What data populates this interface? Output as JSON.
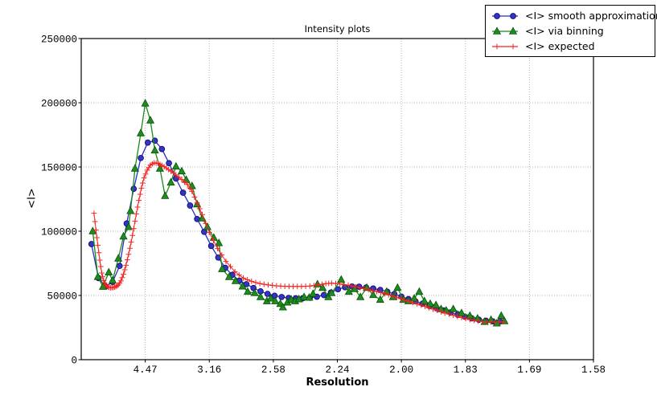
{
  "chart_data": {
    "type": "line",
    "title": "Intensity plots",
    "xlabel": "Resolution",
    "ylabel": "<I>",
    "x_axis": {
      "scale": "linear in 1/d^2 (resolution in Angstrom shown at tick labels)",
      "range_inv_d2": [
        0,
        0.4
      ],
      "tick_positions_inv_d2": [
        0.05,
        0.1,
        0.15,
        0.2,
        0.25,
        0.3,
        0.35,
        0.4
      ],
      "tick_labels": [
        "4.47",
        "3.16",
        "2.58",
        "2.24",
        "2.00",
        "1.83",
        "1.69",
        "1.58"
      ]
    },
    "y_axis": {
      "range": [
        0,
        250000
      ],
      "tick_values": [
        0,
        50000,
        100000,
        150000,
        200000,
        250000
      ],
      "tick_labels": [
        "0",
        "50000",
        "100000",
        "150000",
        "200000",
        "250000"
      ]
    },
    "grid": "dotted gray, both axes",
    "legend_position": "top-right of figure, overlapping axes corner",
    "series": [
      {
        "name": "<I> smooth approximation",
        "marker": "circle",
        "color": "#2b2bc8",
        "marker_fill": "#3434c8",
        "marker_edge": "#0d0d6e",
        "x_inv_d2": [
          0.008,
          0.0135,
          0.019,
          0.0245,
          0.03,
          0.0355,
          0.041,
          0.0465,
          0.052,
          0.0575,
          0.063,
          0.0685,
          0.074,
          0.0795,
          0.085,
          0.0905,
          0.096,
          0.1015,
          0.107,
          0.1125,
          0.118,
          0.1235,
          0.129,
          0.1345,
          0.14,
          0.1455,
          0.151,
          0.1565,
          0.162,
          0.1675,
          0.173,
          0.1785,
          0.184,
          0.1895,
          0.195,
          0.2005,
          0.206,
          0.2115,
          0.217,
          0.2225,
          0.228,
          0.2335,
          0.239,
          0.2445,
          0.25,
          0.2555,
          0.261,
          0.2665,
          0.272,
          0.2775,
          0.283,
          0.2885,
          0.294,
          0.2995,
          0.305,
          0.3105,
          0.316,
          0.3215,
          0.327
        ],
        "y": [
          90000,
          63500,
          57000,
          60500,
          73000,
          106000,
          133000,
          157000,
          169000,
          170500,
          164000,
          153000,
          141000,
          130000,
          120000,
          109500,
          99500,
          88500,
          79500,
          71500,
          66000,
          61500,
          58800,
          55800,
          53200,
          51200,
          49800,
          48800,
          48100,
          47800,
          47800,
          48200,
          49000,
          50300,
          52300,
          54800,
          56400,
          57000,
          56800,
          56200,
          55400,
          54300,
          52900,
          51100,
          49100,
          47200,
          45400,
          43600,
          41800,
          40000,
          38300,
          36600,
          35000,
          33500,
          32200,
          31100,
          30300,
          29800,
          29700
        ]
      },
      {
        "name": "<I> via binning",
        "marker": "triangle",
        "color": "#188a18",
        "marker_fill": "#1f8c1f",
        "marker_edge": "#0a520a",
        "x_inv_d2": [
          0.009,
          0.013,
          0.017,
          0.0215,
          0.0245,
          0.029,
          0.033,
          0.037,
          0.0385,
          0.042,
          0.0465,
          0.05,
          0.054,
          0.0575,
          0.0615,
          0.0655,
          0.07,
          0.074,
          0.0785,
          0.082,
          0.0865,
          0.0905,
          0.0945,
          0.0985,
          0.1035,
          0.1075,
          0.11,
          0.1155,
          0.1205,
          0.126,
          0.13,
          0.1355,
          0.14,
          0.145,
          0.148,
          0.1515,
          0.1555,
          0.1575,
          0.161,
          0.164,
          0.167,
          0.17,
          0.174,
          0.178,
          0.181,
          0.1845,
          0.1885,
          0.193,
          0.1955,
          0.203,
          0.209,
          0.2135,
          0.218,
          0.223,
          0.228,
          0.2335,
          0.2385,
          0.2435,
          0.247,
          0.2515,
          0.2555,
          0.26,
          0.264,
          0.268,
          0.2725,
          0.277,
          0.281,
          0.285,
          0.2905,
          0.297,
          0.3035,
          0.3095,
          0.315,
          0.32,
          0.3245,
          0.328,
          0.3305
        ],
        "y": [
          100000,
          64500,
          56800,
          68000,
          61700,
          78800,
          96000,
          103300,
          115800,
          148800,
          176300,
          199500,
          186300,
          163000,
          148800,
          127500,
          138000,
          150400,
          146700,
          140000,
          135200,
          121000,
          110000,
          103300,
          95000,
          90800,
          70600,
          64400,
          61250,
          57100,
          52900,
          51900,
          48750,
          45600,
          47700,
          45600,
          43500,
          40800,
          44600,
          46700,
          45600,
          47100,
          48750,
          48300,
          51250,
          58750,
          56000,
          48750,
          51900,
          62300,
          52900,
          55000,
          48750,
          56000,
          50400,
          46700,
          52900,
          48750,
          56000,
          46700,
          45600,
          47700,
          52900,
          45600,
          43500,
          42500,
          39400,
          38300,
          39400,
          36250,
          34200,
          32100,
          29500,
          31000,
          28300,
          34200,
          30000
        ]
      },
      {
        "name": "<I> expected",
        "marker": "plus",
        "color": "#f52020",
        "marker_fill": "#f52020",
        "marker_edge": "#f52020",
        "x_inv_d2": [
          0.01,
          0.0115,
          0.013,
          0.0145,
          0.016,
          0.0175,
          0.019,
          0.021,
          0.023,
          0.025,
          0.027,
          0.029,
          0.031,
          0.033,
          0.035,
          0.037,
          0.039,
          0.041,
          0.043,
          0.045,
          0.047,
          0.049,
          0.0515,
          0.054,
          0.057,
          0.06,
          0.063,
          0.0665,
          0.07,
          0.074,
          0.0785,
          0.083,
          0.0865,
          0.0905,
          0.0945,
          0.1,
          0.1065,
          0.113,
          0.12,
          0.1265,
          0.133,
          0.1395,
          0.146,
          0.1525,
          0.159,
          0.1655,
          0.172,
          0.1785,
          0.185,
          0.191,
          0.1955,
          0.202,
          0.2085,
          0.2145,
          0.221,
          0.2275,
          0.234,
          0.24,
          0.2465,
          0.2525,
          0.259,
          0.2655,
          0.2715,
          0.278,
          0.284,
          0.2905,
          0.297,
          0.3035,
          0.31,
          0.3165,
          0.323,
          0.3295
        ],
        "y": [
          114000,
          101000,
          89000,
          77500,
          67500,
          61500,
          58200,
          56500,
          56000,
          56200,
          56800,
          58200,
          61300,
          66500,
          73500,
          82000,
          91500,
          102000,
          113500,
          124000,
          133500,
          141500,
          147500,
          151500,
          153300,
          152800,
          151200,
          149200,
          146800,
          143800,
          140200,
          136300,
          131000,
          122000,
          113000,
          99000,
          86500,
          76500,
          68500,
          63500,
          61000,
          59200,
          58200,
          57500,
          57100,
          57000,
          57000,
          57300,
          58100,
          59200,
          59600,
          58900,
          58000,
          56700,
          55200,
          53700,
          52200,
          50500,
          48500,
          46500,
          44500,
          42400,
          40400,
          38300,
          36300,
          34600,
          32800,
          31200,
          30000,
          29400,
          29300,
          29500
        ]
      }
    ]
  }
}
